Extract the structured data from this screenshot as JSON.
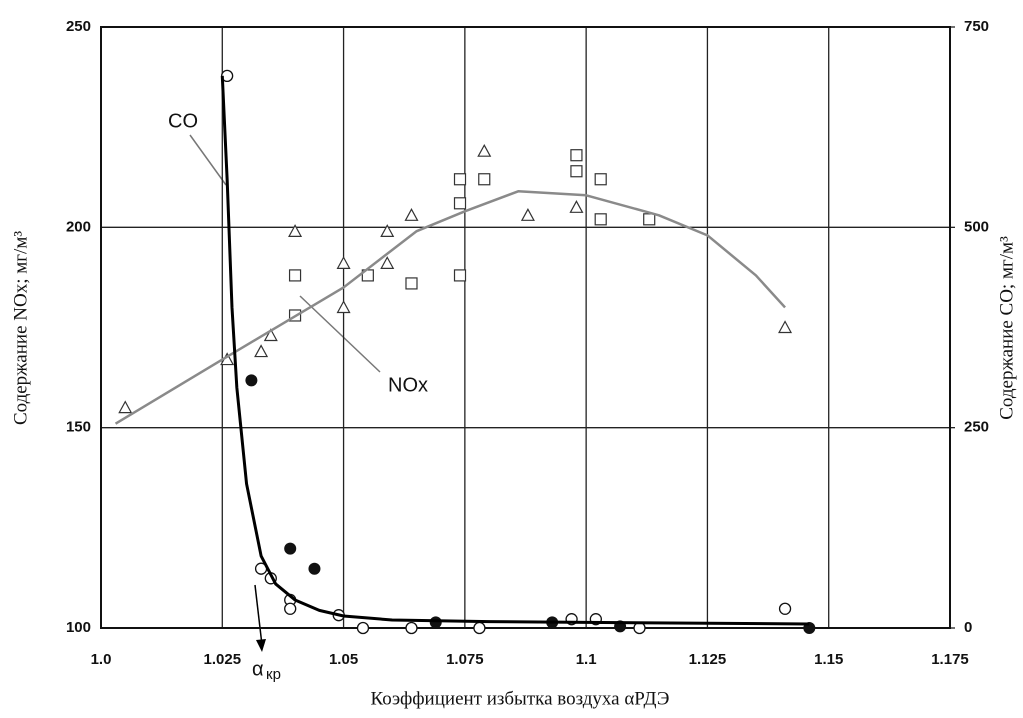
{
  "chart_data": {
    "type": "scatter",
    "x_label": "Коэффициент избытка воздуха αРДЭ",
    "y_label": "Содержание NOx; мг/м³",
    "y2_label": "Содержание CO; мг/м³",
    "annotations": [
      "CO",
      "NOx",
      "α",
      "кр"
    ],
    "xlim": [
      1.0,
      1.175
    ],
    "xticks": [
      {
        "value": 1.0,
        "label": "1.0"
      },
      1.025,
      1.05,
      1.075,
      1.1,
      1.125,
      1.15,
      1.175
    ],
    "ylim": [
      100,
      250
    ],
    "yticks": [
      100,
      150,
      200,
      250
    ],
    "y2lim": [
      0,
      750
    ],
    "y2ticks": [
      0,
      250,
      500,
      750
    ],
    "grid": true,
    "series": [
      {
        "marker": "triangle",
        "color": "#333333",
        "x": [
          1.005,
          1.026,
          1.033,
          1.035,
          1.04,
          1.05,
          1.05,
          1.059,
          1.059,
          1.064,
          1.079,
          1.088,
          1.098,
          1.141
        ],
        "values": [
          155,
          167,
          169,
          173,
          199,
          191,
          180,
          191,
          199,
          203,
          219,
          203,
          205,
          175
        ]
      },
      {
        "marker": "square",
        "color": "#333333",
        "x": [
          1.04,
          1.04,
          1.055,
          1.064,
          1.074,
          1.074,
          1.074,
          1.079,
          1.098,
          1.098,
          1.103,
          1.103,
          1.113
        ],
        "values": [
          188,
          178,
          188,
          186,
          212,
          188,
          206,
          212,
          218,
          214,
          212,
          202,
          202
        ]
      },
      {
        "marker": "line",
        "color": "#8a8a8a",
        "x": [
          1.003,
          1.025,
          1.05,
          1.065,
          1.075,
          1.086,
          1.1,
          1.115,
          1.125,
          1.135,
          1.141
        ],
        "values": [
          151,
          167,
          185,
          199,
          204,
          209,
          208,
          203,
          198,
          188,
          180
        ]
      },
      {
        "marker": "circle",
        "axis": "y2",
        "color": "#111111",
        "x": [
          1.026,
          1.033,
          1.035,
          1.039,
          1.039,
          1.049,
          1.054,
          1.064,
          1.078,
          1.097,
          1.102,
          1.111,
          1.141
        ],
        "values": [
          689,
          74,
          62,
          35,
          24,
          16,
          0,
          0,
          0,
          11,
          11,
          0,
          24
        ]
      },
      {
        "marker": "dot",
        "axis": "y2",
        "color": "#111111",
        "x": [
          1.031,
          1.039,
          1.044,
          1.069,
          1.093,
          1.107,
          1.146
        ],
        "values": [
          309,
          99,
          74,
          7,
          7,
          2,
          0
        ]
      },
      {
        "marker": "line",
        "axis": "y2",
        "color": "#000000",
        "x": [
          1.025,
          1.026,
          1.027,
          1.028,
          1.03,
          1.033,
          1.036,
          1.04,
          1.045,
          1.05,
          1.06,
          1.08,
          1.1,
          1.146
        ],
        "values": [
          689,
          560,
          400,
          300,
          180,
          90,
          55,
          35,
          22,
          15,
          10,
          8,
          7,
          5
        ]
      }
    ]
  }
}
